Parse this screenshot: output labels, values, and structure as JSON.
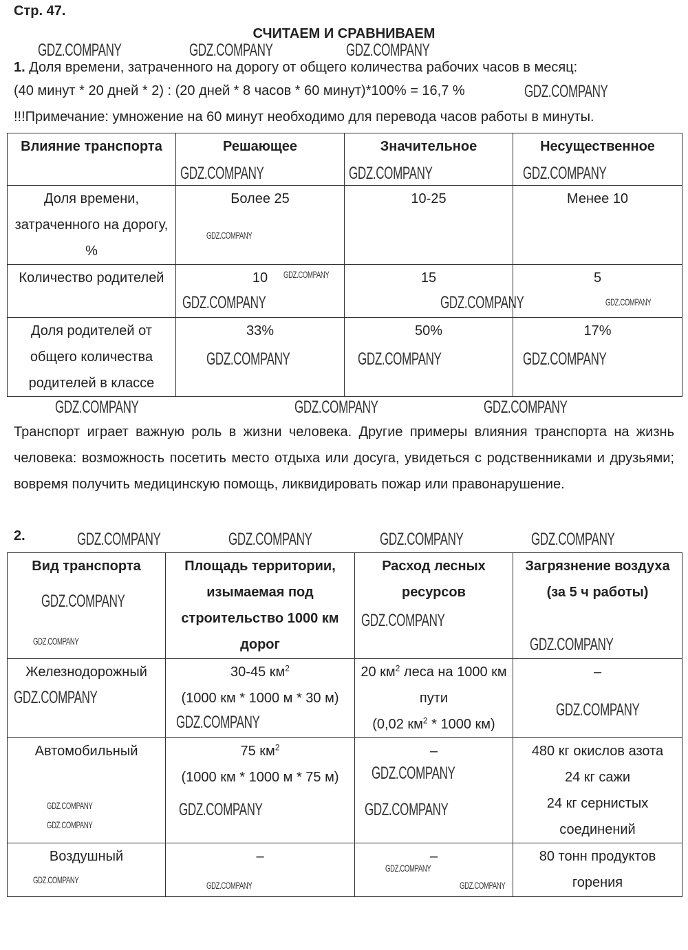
{
  "page_label": "Стр. 47.",
  "section_title": "СЧИТАЕМ И СРАВНИВАЕМ",
  "task1": {
    "number": "1.",
    "line1": " Доля времени, затраченного на дорогу от общего количества рабочих часов в месяц:",
    "line2": "(40 минут * 20 дней * 2) : (20 дней * 8 часов * 60 минут)*100% = 16,7 %",
    "line3": "!!!Примечание: умножение на 60 минут необходимо для перевода часов работы в минуты."
  },
  "table1": {
    "headers": [
      "Влияние транспорта",
      "Решающее",
      "Значительное",
      "Несущественное"
    ],
    "rows": [
      [
        "Доля времени, затраченного на дорогу, %",
        "Более 25",
        "10-25",
        "Менее 10"
      ],
      [
        "Количество родителей",
        "10",
        "15",
        "5"
      ],
      [
        "Доля родителей от общего количества родителей в классе",
        "33%",
        "50%",
        "17%"
      ]
    ]
  },
  "paragraph": "Транспорт играет важную роль в жизни человека. Другие примеры влияния транспорта на жизнь человека: возможность посетить место отдыха или досуга, увидеться с родственниками и друзьями; вовремя получить медицинскую помощь, ликвидировать пожар или правонарушение.",
  "task2": {
    "number": "2.",
    "headers": [
      "Вид транспорта",
      "Площадь территории, изымаемая под строительство 1000 км дорог",
      "Расход лесных ресурсов",
      "Загрязнение воздуха (за 5 ч работы)"
    ],
    "rows": [
      {
        "type": "Железнодорожный",
        "area_main": "30-45 км",
        "area_sup": "2",
        "area_calc": "(1000 км * 1000 м * 30 м)",
        "forest_a": "20 км",
        "forest_sup": "2",
        "forest_b": " леса на 1000 км пути",
        "forest_c1": "(0,02 км",
        "forest_c_sup": "2",
        "forest_c2": " * 1000 км)",
        "air": "–"
      },
      {
        "type": "Автомобильный",
        "area_main": "75 км",
        "area_sup": "2",
        "area_calc": "(1000 км * 1000 м * 75 м)",
        "forest": "–",
        "air_lines": [
          "480 кг окислов азота",
          "24 кг сажи",
          "24 кг сернистых соединений"
        ]
      },
      {
        "type": "Воздушный",
        "area": "–",
        "forest": "–",
        "air": "80 тонн продуктов горения"
      }
    ]
  },
  "watermark": "GDZ.COMPANY"
}
